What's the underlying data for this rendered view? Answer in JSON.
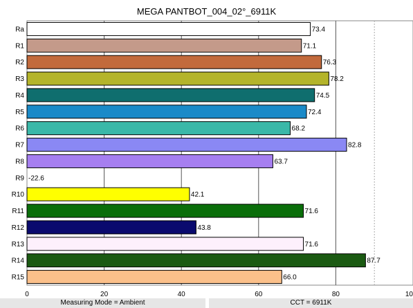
{
  "chart_data": {
    "type": "bar",
    "orientation": "horizontal",
    "title": "MEGA PANTBOT_004_02°_6911K",
    "xlabel": "",
    "ylabel": "",
    "xlim": [
      0,
      100
    ],
    "x_ticks": [
      "0",
      "20",
      "40",
      "60",
      "80",
      "10"
    ],
    "grid": true,
    "categories": [
      "Ra",
      "R1",
      "R2",
      "R3",
      "R4",
      "R5",
      "R6",
      "R7",
      "R8",
      "R9",
      "R10",
      "R11",
      "R12",
      "R13",
      "R14",
      "R15"
    ],
    "values": [
      73.4,
      71.1,
      76.3,
      78.2,
      74.5,
      72.4,
      68.2,
      82.8,
      63.7,
      -22.6,
      42.1,
      71.6,
      43.8,
      71.6,
      87.7,
      66.0
    ],
    "value_labels": [
      "73.4",
      "71.1",
      "76.3",
      "78.2",
      "74.5",
      "72.4",
      "68.2",
      "82.8",
      "63.7",
      "-22.6",
      "42.1",
      "71.6",
      "43.8",
      "71.6",
      "87.7",
      "66.0"
    ],
    "colors": [
      "#ffffff",
      "#c49a8a",
      "#c26a3c",
      "#b4b42a",
      "#0f6e6e",
      "#1a8ac8",
      "#3ab8a8",
      "#8a88f4",
      "#a67ff0",
      "#ffffff",
      "#ffff00",
      "#0a6e0a",
      "#0a0a6e",
      "#fdf0fc",
      "#1b5a12",
      "#fbc08a"
    ]
  },
  "status": {
    "measuring_mode": "Measuring Mode = Ambient",
    "cct": "CCT = 6911K"
  }
}
